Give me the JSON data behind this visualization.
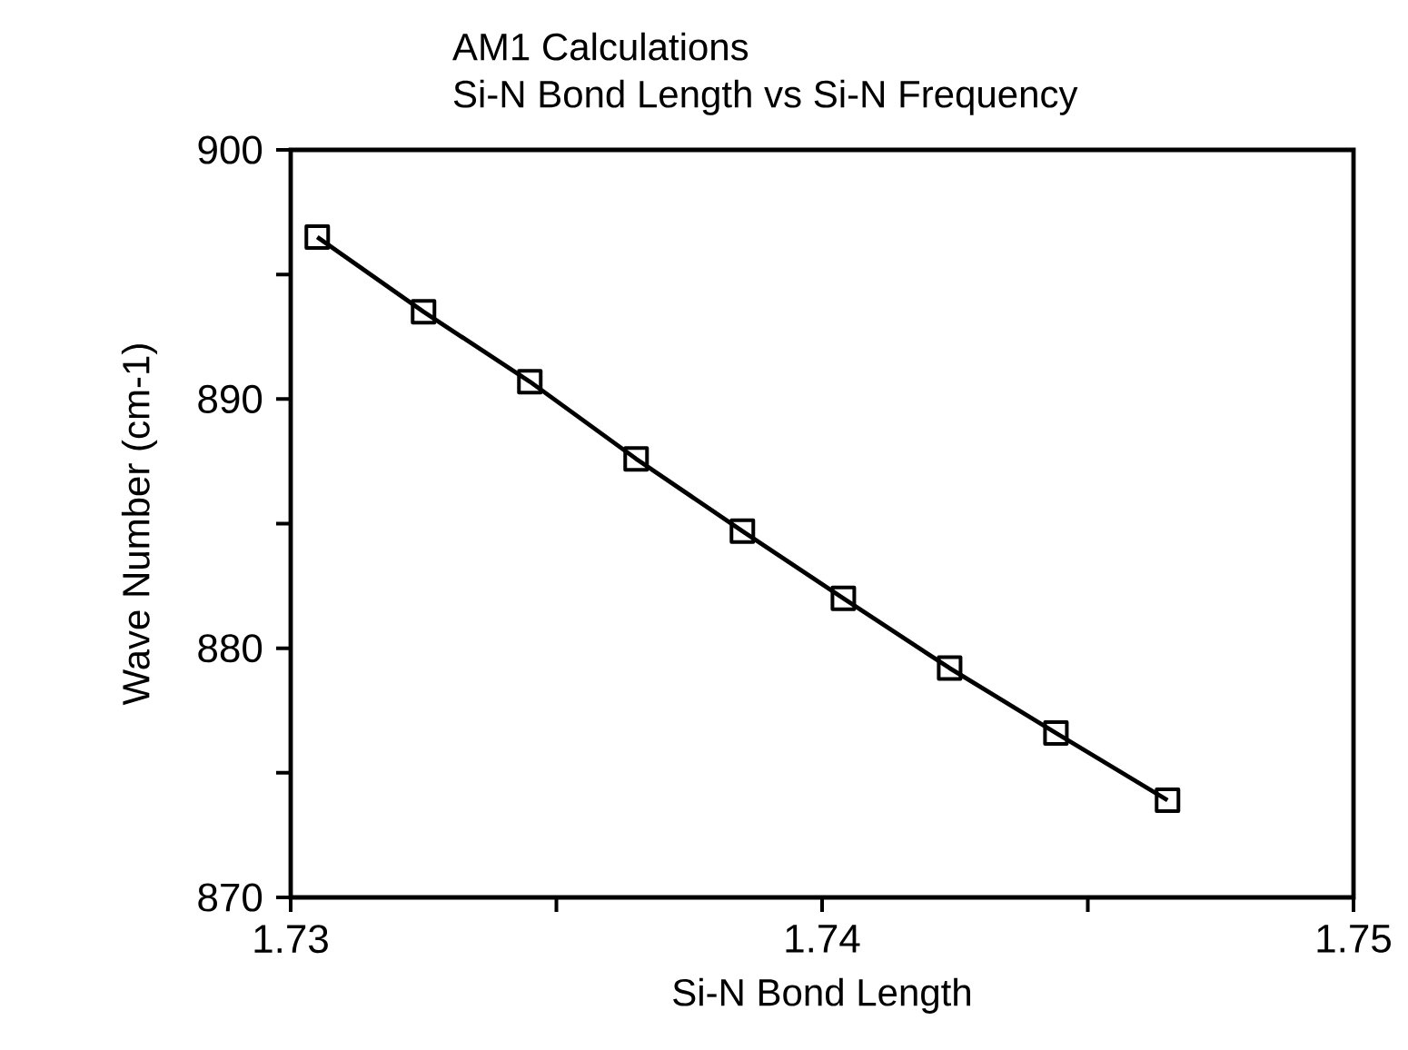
{
  "chart_data": {
    "type": "line",
    "title": "AM1  Calculations",
    "subtitle": "Si-N Bond Length vs Si-N Frequency",
    "xlabel": "Si-N Bond Length",
    "ylabel": "Wave Number (cm-1)",
    "x": [
      1.7305,
      1.7325,
      1.7345,
      1.7365,
      1.7385,
      1.7404,
      1.7424,
      1.7444,
      1.7465
    ],
    "series": [
      {
        "color": "#000000",
        "values": [
          896.5,
          893.5,
          890.7,
          887.6,
          884.7,
          882.0,
          879.2,
          876.6,
          873.9
        ]
      }
    ],
    "xlim": [
      1.73,
      1.75
    ],
    "ylim": [
      870,
      900
    ],
    "xticks": [
      1.73,
      {
        "value": 1.735,
        "label": null
      },
      1.74,
      {
        "value": 1.745,
        "label": null
      },
      1.75
    ],
    "yticks": [
      870,
      {
        "value": 875,
        "label": null
      },
      880,
      {
        "value": 885,
        "label": null
      },
      890,
      {
        "value": 895,
        "label": null
      },
      900
    ],
    "marker": "square",
    "line_style": "solid"
  }
}
